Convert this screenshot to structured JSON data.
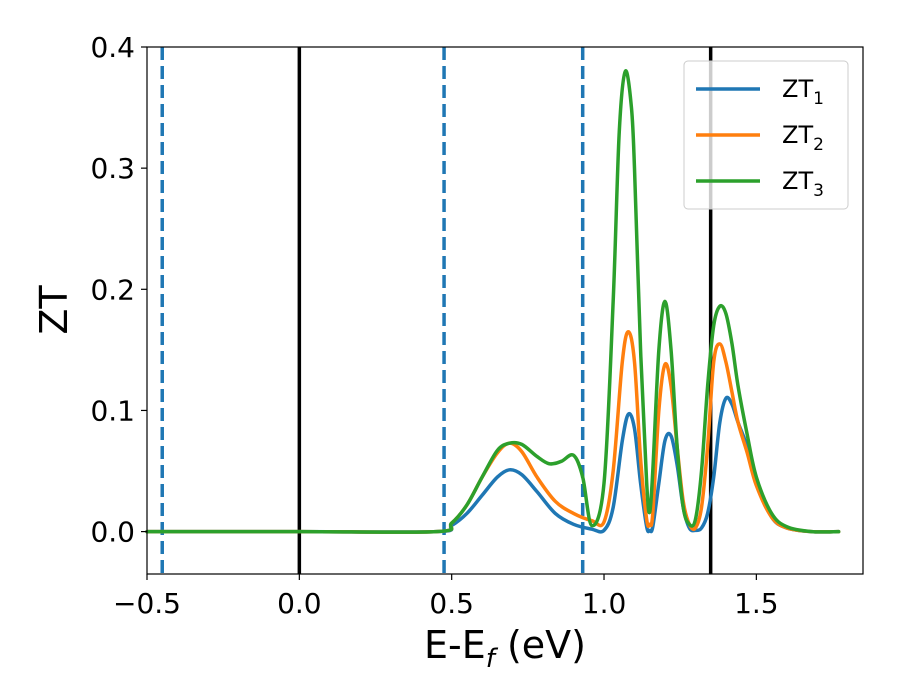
{
  "chart_data": {
    "type": "line",
    "xlabel": "E-E",
    "xlabel_sub": "f",
    "xlabel_unit": " (eV)",
    "ylabel": "ZT",
    "xlim": [
      -0.5,
      1.85
    ],
    "ylim": [
      -0.035,
      0.4
    ],
    "xticks": [
      -0.5,
      0.0,
      0.5,
      1.0,
      1.5
    ],
    "xtick_labels": [
      "−0.5",
      "0.0",
      "0.5",
      "1.0",
      "1.5"
    ],
    "yticks": [
      0.0,
      0.1,
      0.2,
      0.3,
      0.4
    ],
    "ytick_labels": [
      "0.0",
      "0.1",
      "0.2",
      "0.3",
      "0.4"
    ],
    "grid": false,
    "legend_placement": "top-right",
    "vlines": [
      {
        "x": -0.45,
        "style": "dashed",
        "color": "#1f77b4"
      },
      {
        "x": 0.0,
        "style": "solid",
        "color": "#000000"
      },
      {
        "x": 0.475,
        "style": "dashed",
        "color": "#1f77b4"
      },
      {
        "x": 0.93,
        "style": "dashed",
        "color": "#1f77b4"
      },
      {
        "x": 1.35,
        "style": "solid",
        "color": "#000000"
      }
    ],
    "series": [
      {
        "name": "ZT",
        "name_sub": "1",
        "color": "#1f77b4",
        "x": [
          -0.5,
          0.0,
          0.45,
          0.5,
          0.55,
          0.6,
          0.65,
          0.69,
          0.73,
          0.78,
          0.84,
          0.9,
          0.96,
          1.0,
          1.03,
          1.06,
          1.08,
          1.1,
          1.12,
          1.14,
          1.15,
          1.16,
          1.18,
          1.2,
          1.22,
          1.24,
          1.26,
          1.28,
          1.3,
          1.32,
          1.34,
          1.36,
          1.38,
          1.4,
          1.42,
          1.44,
          1.47,
          1.5,
          1.55,
          1.6,
          1.68,
          1.77
        ],
        "y": [
          0.0,
          0.0,
          0.0,
          0.005,
          0.015,
          0.03,
          0.045,
          0.051,
          0.047,
          0.033,
          0.015,
          0.006,
          0.002,
          0.001,
          0.02,
          0.075,
          0.097,
          0.085,
          0.04,
          0.004,
          0.001,
          0.004,
          0.04,
          0.075,
          0.079,
          0.055,
          0.02,
          0.003,
          0.001,
          0.003,
          0.015,
          0.045,
          0.09,
          0.11,
          0.105,
          0.09,
          0.07,
          0.042,
          0.012,
          0.003,
          0.0,
          0.0
        ]
      },
      {
        "name": "ZT",
        "name_sub": "2",
        "color": "#ff7f0e",
        "x": [
          -0.5,
          0.0,
          0.45,
          0.5,
          0.55,
          0.6,
          0.65,
          0.69,
          0.73,
          0.78,
          0.84,
          0.9,
          0.96,
          1.0,
          1.03,
          1.06,
          1.08,
          1.1,
          1.12,
          1.14,
          1.15,
          1.16,
          1.18,
          1.2,
          1.22,
          1.24,
          1.26,
          1.28,
          1.3,
          1.32,
          1.34,
          1.36,
          1.38,
          1.4,
          1.42,
          1.44,
          1.47,
          1.5,
          1.55,
          1.6,
          1.68,
          1.77
        ],
        "y": [
          0.0,
          0.0,
          0.0,
          0.007,
          0.022,
          0.045,
          0.065,
          0.073,
          0.066,
          0.045,
          0.025,
          0.015,
          0.009,
          0.008,
          0.05,
          0.14,
          0.165,
          0.14,
          0.06,
          0.01,
          0.006,
          0.015,
          0.1,
          0.138,
          0.12,
          0.07,
          0.025,
          0.006,
          0.003,
          0.02,
          0.07,
          0.14,
          0.155,
          0.14,
          0.115,
          0.09,
          0.065,
          0.038,
          0.012,
          0.003,
          0.0,
          0.0
        ]
      },
      {
        "name": "ZT",
        "name_sub": "3",
        "color": "#2ca02c",
        "x": [
          -0.5,
          0.0,
          0.45,
          0.5,
          0.55,
          0.6,
          0.65,
          0.69,
          0.73,
          0.78,
          0.82,
          0.86,
          0.9,
          0.93,
          0.96,
          1.0,
          1.03,
          1.05,
          1.07,
          1.09,
          1.1,
          1.12,
          1.14,
          1.15,
          1.16,
          1.18,
          1.2,
          1.22,
          1.24,
          1.26,
          1.28,
          1.3,
          1.32,
          1.34,
          1.36,
          1.38,
          1.4,
          1.42,
          1.44,
          1.47,
          1.5,
          1.55,
          1.6,
          1.68,
          1.77
        ],
        "y": [
          0.0,
          0.0,
          0.0,
          0.007,
          0.022,
          0.045,
          0.067,
          0.073,
          0.072,
          0.062,
          0.056,
          0.058,
          0.063,
          0.045,
          0.005,
          0.04,
          0.19,
          0.33,
          0.38,
          0.35,
          0.3,
          0.15,
          0.04,
          0.016,
          0.05,
          0.15,
          0.19,
          0.15,
          0.07,
          0.02,
          0.006,
          0.01,
          0.05,
          0.12,
          0.17,
          0.186,
          0.18,
          0.155,
          0.12,
          0.08,
          0.045,
          0.015,
          0.004,
          0.0,
          0.0
        ]
      }
    ]
  }
}
